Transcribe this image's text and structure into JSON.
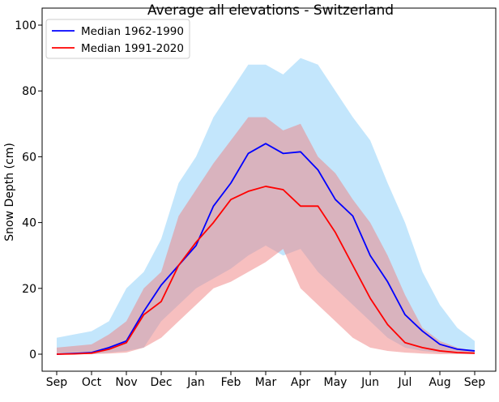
{
  "chart_data": {
    "type": "area",
    "title": "Average all elevations - Switzerland",
    "xlabel": "",
    "ylabel": "Snow Depth (cm)",
    "xlim": [
      -0.4,
      12.6
    ],
    "ylim": [
      -5,
      102
    ],
    "x_tick_labels": [
      "Sep",
      "Oct",
      "Nov",
      "Dec",
      "Jan",
      "Feb",
      "Mar",
      "Apr",
      "May",
      "Jun",
      "Jul",
      "Aug",
      "Sep"
    ],
    "y_ticks": [
      0,
      20,
      40,
      60,
      80,
      100
    ],
    "grid": false,
    "legend_position": "top-left",
    "x": [
      0,
      0.5,
      1,
      1.5,
      2,
      2.5,
      3,
      3.5,
      4,
      4.5,
      5,
      5.5,
      6,
      6.5,
      7,
      7.5,
      8,
      8.5,
      9,
      9.5,
      10,
      10.5,
      11,
      11.5,
      12
    ],
    "series": [
      {
        "name": "Median 1962-1990",
        "color": "#0000ff",
        "values": [
          0,
          0.2,
          0.5,
          2,
          4,
          13,
          21,
          27,
          33,
          45,
          52,
          61,
          64,
          61,
          61.5,
          56,
          47,
          42,
          30,
          22,
          12,
          7,
          3,
          1.5,
          1
        ],
        "band_lower": [
          0,
          0,
          0,
          0.5,
          1,
          2,
          10,
          15,
          20,
          23,
          26,
          30,
          33,
          30,
          32,
          25,
          20,
          15,
          10,
          5,
          2,
          1,
          0.5,
          0.2,
          0
        ],
        "band_upper": [
          5,
          6,
          7,
          10,
          20,
          25,
          35,
          52,
          60,
          72,
          80,
          88,
          88,
          85,
          90,
          88,
          80,
          72,
          65,
          52,
          40,
          25,
          15,
          8,
          4
        ],
        "band_color": "#87cefa"
      },
      {
        "name": "Median 1991-2020",
        "color": "#ff0000",
        "values": [
          0,
          0.1,
          0.3,
          1.5,
          3.5,
          12,
          16,
          27,
          34,
          40,
          47,
          49.5,
          51,
          50,
          45,
          45,
          37,
          27,
          17,
          9,
          3.5,
          2,
          1,
          0.5,
          0.3
        ],
        "band_lower": [
          0,
          0,
          0,
          0.2,
          0.5,
          2,
          5,
          10,
          15,
          20,
          22,
          25,
          28,
          32,
          20,
          15,
          10,
          5,
          2,
          1,
          0.5,
          0.2,
          0,
          0,
          0
        ],
        "band_upper": [
          2,
          2.5,
          3,
          6,
          10,
          20,
          25,
          42,
          50,
          58,
          65,
          72,
          72,
          68,
          70,
          60,
          55,
          47,
          40,
          30,
          18,
          8,
          4,
          2,
          1
        ],
        "band_color": "#f08080"
      }
    ]
  }
}
